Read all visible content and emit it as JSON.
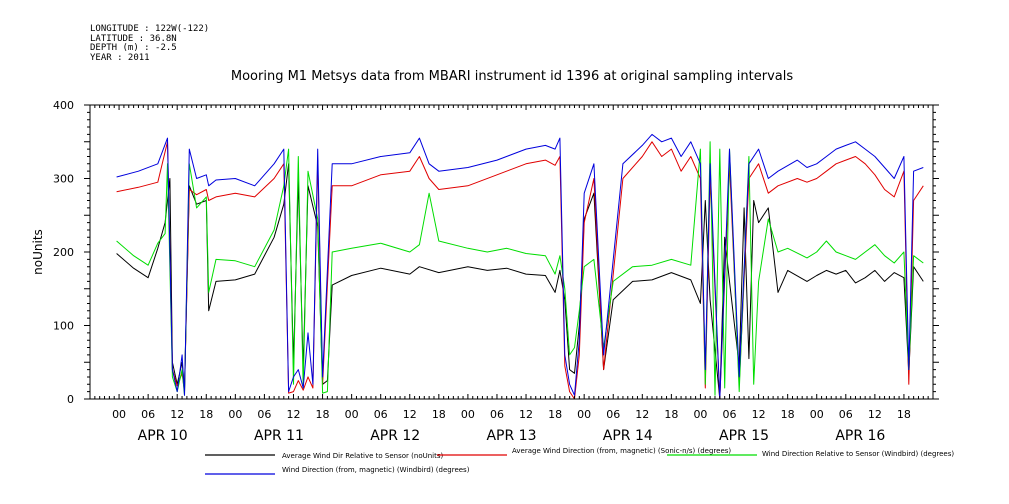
{
  "metadata": [
    "LONGITUDE : 122W(-122)",
    "LATITUDE : 36.8N",
    "DEPTH (m) : -2.5",
    "YEAR : 2011"
  ],
  "chart_data": {
    "type": "line",
    "title": "Mooring M1 Metsys data from MBARI instrument id 1396 at original sampling intervals",
    "xlabel": "",
    "ylabel": "noUnits",
    "ylim": [
      0,
      400
    ],
    "yticks": [
      0,
      100,
      200,
      300,
      400
    ],
    "xlim_hours": [
      -6,
      168
    ],
    "hour_tick_labels": [
      "00",
      "06",
      "12",
      "18"
    ],
    "date_labels": [
      "APR 10",
      "APR 11",
      "APR 12",
      "APR 13",
      "APR 14",
      "APR 15",
      "APR 16"
    ],
    "grid": false,
    "legend_position": "bottom",
    "series": [
      {
        "name": "Average Wind Dir Relative to Sensor (noUnits)",
        "color": "#000000",
        "points": [
          [
            -0.5,
            198
          ],
          [
            3,
            178
          ],
          [
            6,
            165
          ],
          [
            8,
            205
          ],
          [
            9.5,
            240
          ],
          [
            10.5,
            300
          ],
          [
            11,
            50
          ],
          [
            12,
            20
          ],
          [
            13,
            50
          ],
          [
            13.5,
            15
          ],
          [
            14.5,
            290
          ],
          [
            16,
            265
          ],
          [
            18,
            270
          ],
          [
            18.5,
            120
          ],
          [
            20,
            160
          ],
          [
            24,
            162
          ],
          [
            28,
            170
          ],
          [
            32,
            220
          ],
          [
            34,
            265
          ],
          [
            35,
            320
          ],
          [
            36,
            45
          ],
          [
            37,
            300
          ],
          [
            38,
            40
          ],
          [
            39,
            290
          ],
          [
            41,
            235
          ],
          [
            42,
            20
          ],
          [
            43,
            25
          ],
          [
            44,
            155
          ],
          [
            48,
            168
          ],
          [
            54,
            178
          ],
          [
            60,
            170
          ],
          [
            62,
            180
          ],
          [
            66,
            172
          ],
          [
            72,
            180
          ],
          [
            76,
            175
          ],
          [
            80,
            178
          ],
          [
            84,
            170
          ],
          [
            88,
            168
          ],
          [
            90,
            145
          ],
          [
            91,
            175
          ],
          [
            92,
            135
          ],
          [
            93,
            40
          ],
          [
            94,
            35
          ],
          [
            95,
            100
          ],
          [
            96,
            245
          ],
          [
            98,
            280
          ],
          [
            100,
            40
          ],
          [
            102,
            135
          ],
          [
            106,
            160
          ],
          [
            110,
            162
          ],
          [
            114,
            172
          ],
          [
            118,
            162
          ],
          [
            120,
            130
          ],
          [
            121,
            270
          ],
          [
            122,
            135
          ],
          [
            124,
            0
          ],
          [
            125,
            220
          ],
          [
            126,
            160
          ],
          [
            128,
            45
          ],
          [
            129,
            260
          ],
          [
            130,
            55
          ],
          [
            131,
            270
          ],
          [
            132,
            240
          ],
          [
            134,
            260
          ],
          [
            136,
            145
          ],
          [
            138,
            175
          ],
          [
            142,
            160
          ],
          [
            144,
            168
          ],
          [
            146,
            175
          ],
          [
            148,
            170
          ],
          [
            150,
            175
          ],
          [
            152,
            158
          ],
          [
            154,
            165
          ],
          [
            156,
            175
          ],
          [
            158,
            160
          ],
          [
            160,
            172
          ],
          [
            162,
            165
          ],
          [
            163,
            35
          ],
          [
            164,
            180
          ],
          [
            166,
            160
          ]
        ]
      },
      {
        "name": "Average Wind Direction (from, magnetic) (Sonic-n/s) (degrees)",
        "color": "#e00000",
        "points": [
          [
            -0.5,
            282
          ],
          [
            4,
            288
          ],
          [
            8,
            295
          ],
          [
            10,
            350
          ],
          [
            11,
            40
          ],
          [
            12,
            18
          ],
          [
            13,
            35
          ],
          [
            13.5,
            10
          ],
          [
            14.5,
            285
          ],
          [
            16,
            278
          ],
          [
            18,
            285
          ],
          [
            18.5,
            270
          ],
          [
            20,
            275
          ],
          [
            24,
            280
          ],
          [
            28,
            275
          ],
          [
            32,
            300
          ],
          [
            34,
            320
          ],
          [
            35,
            8
          ],
          [
            36,
            10
          ],
          [
            37,
            25
          ],
          [
            38,
            12
          ],
          [
            39,
            30
          ],
          [
            40,
            15
          ],
          [
            41,
            325
          ],
          [
            42,
            20
          ],
          [
            44,
            290
          ],
          [
            48,
            290
          ],
          [
            54,
            305
          ],
          [
            60,
            310
          ],
          [
            62,
            330
          ],
          [
            64,
            300
          ],
          [
            66,
            285
          ],
          [
            72,
            290
          ],
          [
            78,
            305
          ],
          [
            84,
            320
          ],
          [
            88,
            325
          ],
          [
            90,
            318
          ],
          [
            91,
            330
          ],
          [
            92,
            45
          ],
          [
            93,
            10
          ],
          [
            94,
            0
          ],
          [
            95,
            60
          ],
          [
            96,
            240
          ],
          [
            98,
            300
          ],
          [
            100,
            40
          ],
          [
            104,
            300
          ],
          [
            108,
            330
          ],
          [
            110,
            350
          ],
          [
            112,
            330
          ],
          [
            114,
            340
          ],
          [
            116,
            310
          ],
          [
            118,
            330
          ],
          [
            120,
            300
          ],
          [
            121,
            15
          ],
          [
            122,
            300
          ],
          [
            124,
            0
          ],
          [
            126,
            320
          ],
          [
            128,
            20
          ],
          [
            130,
            300
          ],
          [
            132,
            320
          ],
          [
            134,
            280
          ],
          [
            136,
            290
          ],
          [
            140,
            300
          ],
          [
            142,
            295
          ],
          [
            144,
            300
          ],
          [
            146,
            310
          ],
          [
            148,
            320
          ],
          [
            150,
            325
          ],
          [
            152,
            330
          ],
          [
            154,
            320
          ],
          [
            156,
            305
          ],
          [
            158,
            285
          ],
          [
            160,
            275
          ],
          [
            162,
            310
          ],
          [
            163,
            20
          ],
          [
            164,
            270
          ],
          [
            166,
            290
          ]
        ]
      },
      {
        "name": "Wind Direction Relative to Sensor (Windbird) (degrees)",
        "color": "#00dd00",
        "points": [
          [
            -0.5,
            215
          ],
          [
            3,
            195
          ],
          [
            6,
            182
          ],
          [
            8,
            212
          ],
          [
            9.5,
            225
          ],
          [
            10,
            320
          ],
          [
            11,
            30
          ],
          [
            12,
            10
          ],
          [
            13,
            40
          ],
          [
            13.5,
            5
          ],
          [
            14.5,
            320
          ],
          [
            16,
            260
          ],
          [
            18,
            275
          ],
          [
            18.5,
            145
          ],
          [
            20,
            190
          ],
          [
            24,
            188
          ],
          [
            28,
            180
          ],
          [
            32,
            230
          ],
          [
            34,
            290
          ],
          [
            35,
            340
          ],
          [
            36,
            20
          ],
          [
            37,
            330
          ],
          [
            38,
            15
          ],
          [
            39,
            310
          ],
          [
            41,
            245
          ],
          [
            42,
            8
          ],
          [
            43,
            10
          ],
          [
            44,
            200
          ],
          [
            48,
            205
          ],
          [
            54,
            212
          ],
          [
            60,
            200
          ],
          [
            62,
            210
          ],
          [
            64,
            280
          ],
          [
            66,
            215
          ],
          [
            72,
            205
          ],
          [
            76,
            200
          ],
          [
            80,
            205
          ],
          [
            84,
            198
          ],
          [
            88,
            195
          ],
          [
            90,
            170
          ],
          [
            91,
            195
          ],
          [
            92,
            150
          ],
          [
            93,
            60
          ],
          [
            94,
            70
          ],
          [
            95,
            120
          ],
          [
            96,
            180
          ],
          [
            98,
            190
          ],
          [
            100,
            70
          ],
          [
            102,
            160
          ],
          [
            106,
            180
          ],
          [
            110,
            182
          ],
          [
            114,
            190
          ],
          [
            118,
            182
          ],
          [
            120,
            340
          ],
          [
            121,
            20
          ],
          [
            122,
            350
          ],
          [
            123,
            5
          ],
          [
            124,
            340
          ],
          [
            125,
            15
          ],
          [
            126,
            340
          ],
          [
            128,
            10
          ],
          [
            130,
            330
          ],
          [
            131,
            20
          ],
          [
            132,
            160
          ],
          [
            134,
            245
          ],
          [
            136,
            200
          ],
          [
            138,
            205
          ],
          [
            142,
            192
          ],
          [
            144,
            200
          ],
          [
            146,
            215
          ],
          [
            148,
            200
          ],
          [
            150,
            195
          ],
          [
            152,
            190
          ],
          [
            154,
            200
          ],
          [
            156,
            210
          ],
          [
            158,
            195
          ],
          [
            160,
            185
          ],
          [
            162,
            200
          ],
          [
            163,
            40
          ],
          [
            164,
            195
          ],
          [
            166,
            185
          ]
        ]
      },
      {
        "name": "Wind Direction (from, magnetic) (Windbird) (degrees)",
        "color": "#0000dd",
        "points": [
          [
            -0.5,
            302
          ],
          [
            4,
            310
          ],
          [
            8,
            320
          ],
          [
            10,
            355
          ],
          [
            11,
            40
          ],
          [
            12,
            10
          ],
          [
            13,
            60
          ],
          [
            13.5,
            5
          ],
          [
            14.5,
            340
          ],
          [
            16,
            300
          ],
          [
            18,
            305
          ],
          [
            18.5,
            290
          ],
          [
            20,
            298
          ],
          [
            24,
            300
          ],
          [
            28,
            290
          ],
          [
            32,
            320
          ],
          [
            34,
            340
          ],
          [
            35,
            10
          ],
          [
            36,
            30
          ],
          [
            37,
            40
          ],
          [
            38,
            15
          ],
          [
            39,
            90
          ],
          [
            40,
            20
          ],
          [
            41,
            340
          ],
          [
            42,
            30
          ],
          [
            44,
            320
          ],
          [
            48,
            320
          ],
          [
            54,
            330
          ],
          [
            60,
            335
          ],
          [
            62,
            355
          ],
          [
            64,
            320
          ],
          [
            66,
            310
          ],
          [
            72,
            315
          ],
          [
            78,
            325
          ],
          [
            84,
            340
          ],
          [
            88,
            345
          ],
          [
            90,
            340
          ],
          [
            91,
            355
          ],
          [
            92,
            60
          ],
          [
            93,
            20
          ],
          [
            94,
            5
          ],
          [
            95,
            80
          ],
          [
            96,
            280
          ],
          [
            98,
            320
          ],
          [
            100,
            60
          ],
          [
            104,
            320
          ],
          [
            108,
            345
          ],
          [
            110,
            360
          ],
          [
            112,
            350
          ],
          [
            114,
            355
          ],
          [
            116,
            330
          ],
          [
            118,
            350
          ],
          [
            120,
            320
          ],
          [
            121,
            40
          ],
          [
            122,
            320
          ],
          [
            124,
            0
          ],
          [
            126,
            340
          ],
          [
            128,
            30
          ],
          [
            130,
            320
          ],
          [
            132,
            340
          ],
          [
            134,
            300
          ],
          [
            136,
            310
          ],
          [
            140,
            325
          ],
          [
            142,
            315
          ],
          [
            144,
            320
          ],
          [
            146,
            330
          ],
          [
            148,
            340
          ],
          [
            150,
            345
          ],
          [
            152,
            350
          ],
          [
            154,
            340
          ],
          [
            156,
            330
          ],
          [
            158,
            315
          ],
          [
            160,
            300
          ],
          [
            162,
            330
          ],
          [
            163,
            40
          ],
          [
            164,
            310
          ],
          [
            166,
            315
          ]
        ]
      }
    ]
  }
}
